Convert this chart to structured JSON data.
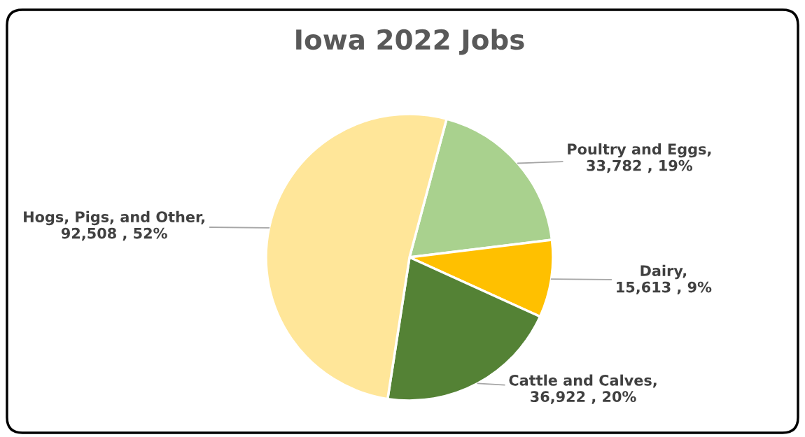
{
  "chart_data": {
    "type": "pie",
    "title": "Iowa 2022 Jobs",
    "categories": [
      "Poultry and Eggs",
      "Dairy",
      "Cattle and Calves",
      "Hogs, Pigs, and Other"
    ],
    "values": [
      33782,
      15613,
      36922,
      92508
    ],
    "value_labels": [
      ", 33,782 , 19%",
      ",  15,613 , 9%",
      ", 36,922 , 20%",
      ", 92,508 , 52%"
    ],
    "colors": [
      "#a9d18e",
      "#ffc000",
      "#548235",
      "#ffe699"
    ],
    "legend": false
  }
}
